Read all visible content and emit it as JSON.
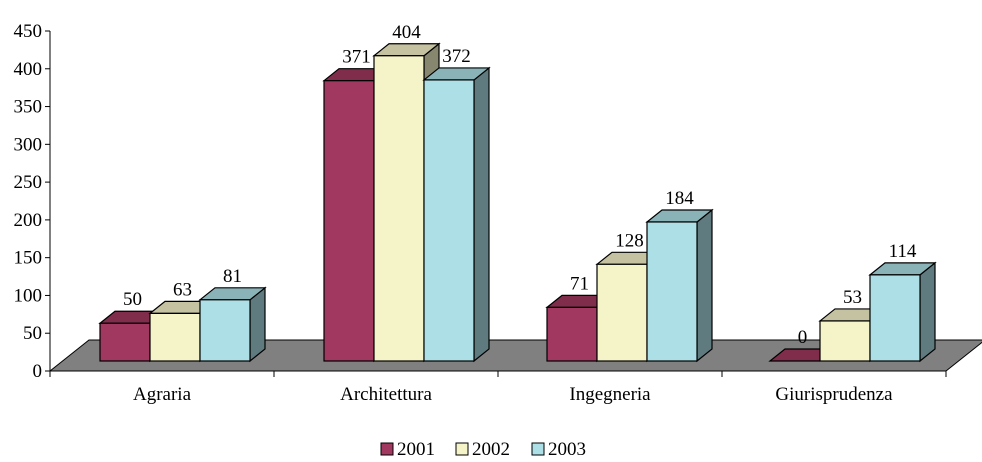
{
  "chart_data": {
    "type": "bar",
    "title": "",
    "xlabel": "",
    "ylabel": "",
    "categories": [
      "Agraria",
      "Architettura",
      "Ingegneria",
      "Giurisprudenza"
    ],
    "series": [
      {
        "name": "2001",
        "values": [
          50,
          371,
          71,
          0
        ],
        "color": "#A0385F"
      },
      {
        "name": "2002",
        "values": [
          63,
          404,
          128,
          53
        ],
        "color": "#F5F3C8"
      },
      {
        "name": "2003",
        "values": [
          81,
          372,
          184,
          114
        ],
        "color": "#ADE0E6"
      }
    ],
    "ylim": [
      0,
      450
    ],
    "yticks": [
      0,
      50,
      100,
      150,
      200,
      250,
      300,
      350,
      400,
      450
    ],
    "grid": false,
    "legend": "bottom",
    "floor_color": "#808080",
    "style": "3d"
  }
}
